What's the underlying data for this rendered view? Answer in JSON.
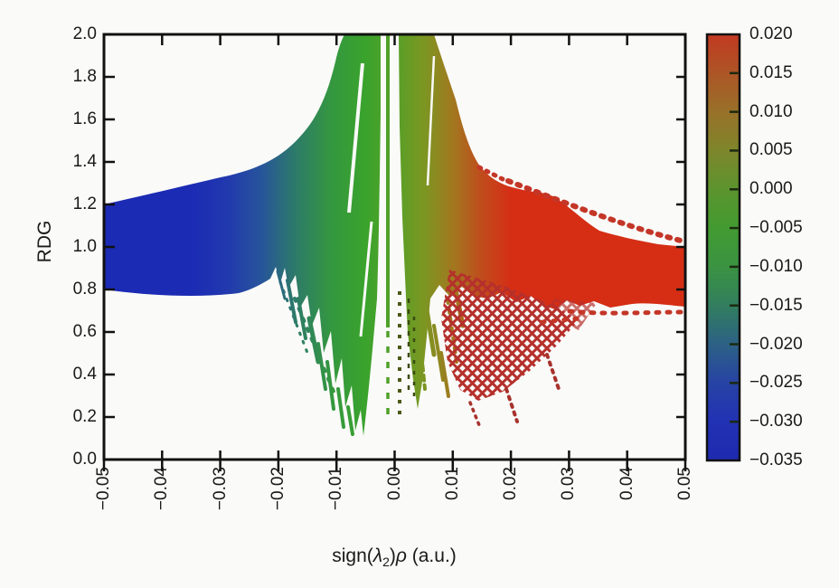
{
  "figure": {
    "background": "#fafaf8",
    "kind": "NCI reduced-density-gradient scatter plot"
  },
  "axes": {
    "ylabel": "RDG",
    "xlabel_parts": {
      "pre": "sign(",
      "lambda": "λ",
      "sub": "2",
      "close": ")",
      "rho": "ρ",
      "post": " (a.u.)"
    },
    "x_ticks": [
      "−0.05",
      "−0.04",
      "−0.03",
      "−0.02",
      "−0.01",
      "0.00",
      "0.01",
      "0.02",
      "0.03",
      "0.04",
      "0.05"
    ],
    "y_ticks": [
      "0.0",
      "0.2",
      "0.4",
      "0.6",
      "0.8",
      "1.0",
      "1.2",
      "1.4",
      "1.6",
      "1.8",
      "2.0"
    ]
  },
  "colorbar": {
    "ticks": [
      "0.020",
      "0.015",
      "0.010",
      "0.005",
      "0.000",
      "−0.005",
      "−0.010",
      "−0.015",
      "−0.020",
      "−0.025",
      "−0.030",
      "−0.035"
    ],
    "min": -0.035,
    "max": 0.02
  },
  "chart_data": {
    "type": "scatter",
    "subtype": "NCI RDG density plot, point color encodes x value",
    "title": "",
    "xlabel": "sign(λ2)ρ (a.u.)",
    "ylabel": "RDG",
    "xlim": [
      -0.05,
      0.05
    ],
    "ylim": [
      0.0,
      2.0
    ],
    "x_tick_step": 0.01,
    "y_tick_step": 0.2,
    "grid": false,
    "colorbar": {
      "min": -0.035,
      "max": 0.02,
      "tick_step": 0.005,
      "colors_top_to_bottom": [
        "#c23a22",
        "#987129",
        "#3f9b31",
        "#327e5e",
        "#1e2ab0"
      ],
      "position": "right"
    },
    "regions": [
      {
        "label": "attractive (blue) band",
        "x_range": [
          -0.05,
          -0.018
        ],
        "rdg_range": [
          0.78,
          1.46
        ],
        "color": "#1b2bb4"
      },
      {
        "label": "green funnel left of gap",
        "x_range": [
          -0.018,
          -0.002
        ],
        "rdg_range": [
          0.1,
          2.0
        ],
        "color": "#3aa32c",
        "note": "ragged diagonal spikes on lower-left edge down to RDG≈0.1"
      },
      {
        "label": "near-zero white gap",
        "x_range": [
          -0.002,
          0.0015
        ],
        "note": "thin green spike at x≈-0.001 from RDG 2.0 down to ≈0.15, dotted tail"
      },
      {
        "label": "olive funnel right of gap",
        "x_range": [
          0.0015,
          0.01
        ],
        "rdg_range": [
          0.15,
          2.0
        ],
        "color": "#7b9722"
      },
      {
        "label": "repulsive (red) band",
        "x_range": [
          0.01,
          0.05
        ],
        "rdg_range": [
          0.72,
          1.45
        ],
        "color": "#d52e15",
        "note": "speckled crosshatch texture below band between x≈0.013–0.03, RDG 0.25–0.9"
      }
    ]
  }
}
